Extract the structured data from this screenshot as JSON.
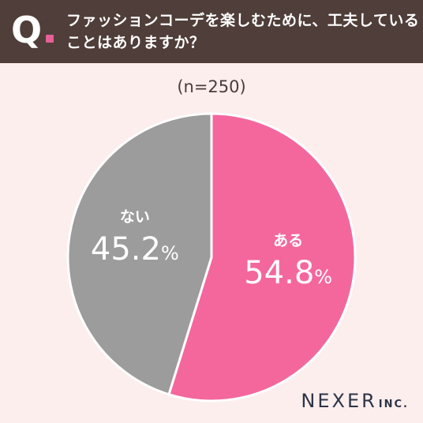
{
  "header": {
    "q_label": "Q",
    "question_line1": "ファッションコーデを楽しむために、工夫している",
    "question_line2": "ことはありますか？"
  },
  "sample_size": "(n=250)",
  "colors": {
    "header_bg": "#4f3e39",
    "background": "#fbeeed",
    "yes": "#f4679d",
    "no": "#9b9c9b"
  },
  "chart_data": {
    "type": "pie",
    "start": "top",
    "direction": "clockwise",
    "slices": [
      {
        "label": "ある",
        "value": 54.8,
        "display": "54.8",
        "unit": "%",
        "color": "#f4679d"
      },
      {
        "label": "ない",
        "value": 45.2,
        "display": "45.2",
        "unit": "%",
        "color": "#9b9c9b"
      }
    ]
  },
  "logo": {
    "main": "NEXER",
    "suffix": "INC."
  }
}
